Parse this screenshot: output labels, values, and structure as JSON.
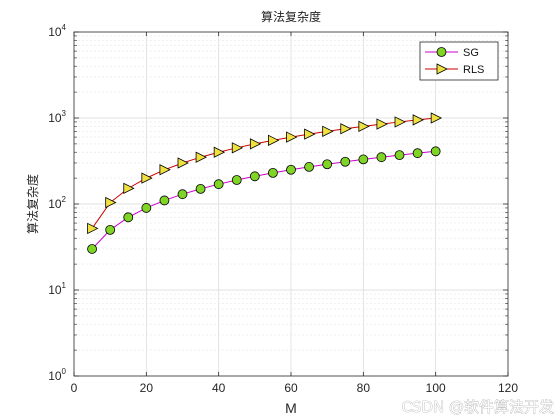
{
  "chart_data": {
    "type": "line",
    "title": "算法复杂度",
    "xlabel": "M",
    "ylabel": "算法复杂度",
    "xlim": [
      0,
      120
    ],
    "ylim": [
      1,
      10000
    ],
    "yscale": "log",
    "grid": true,
    "legend_position": "top-right",
    "x_ticks": [
      "0",
      "20",
      "40",
      "60",
      "80",
      "100",
      "120"
    ],
    "x": [
      5,
      10,
      15,
      20,
      25,
      30,
      35,
      40,
      45,
      50,
      55,
      60,
      65,
      70,
      75,
      80,
      85,
      90,
      95,
      100
    ],
    "series": [
      {
        "name": "SG",
        "color": "#cc00cc",
        "marker": "circle",
        "marker_color": "#80d426",
        "values": [
          30,
          50,
          70,
          90,
          110,
          130,
          150,
          170,
          190,
          210,
          230,
          250,
          270,
          290,
          310,
          330,
          350,
          370,
          390,
          410
        ]
      },
      {
        "name": "RLS",
        "color": "#cc0000",
        "marker": "triangle-right",
        "marker_color": "#f0e040",
        "values": [
          52,
          104,
          152,
          200,
          250,
          300,
          350,
          400,
          450,
          500,
          550,
          600,
          650,
          700,
          750,
          800,
          850,
          900,
          950,
          1000
        ]
      }
    ]
  },
  "watermark": "CSDN @软件算法开发"
}
